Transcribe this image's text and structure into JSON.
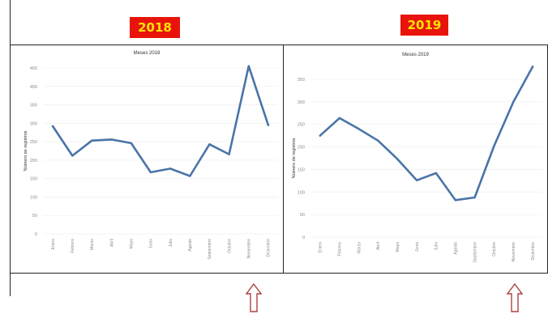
{
  "badges": {
    "left": "2018",
    "right": "2019"
  },
  "colors": {
    "badge_bg": "#e8140c",
    "badge_text": "#ffe400",
    "line": "#4a74a8",
    "grid": "#f0f0f0",
    "arrow": "#b04040"
  },
  "chart_data": [
    {
      "type": "line",
      "title": "Meses 2018",
      "ylabel": "Número de registros",
      "xlabel": "",
      "categories": [
        "Enero",
        "Febrero",
        "Marzo",
        "Abril",
        "Mayo",
        "Junio",
        "Julio",
        "Agosto",
        "Septiembre",
        "Octubre",
        "Noviembre",
        "Diciembre"
      ],
      "series": [
        {
          "values": [
            292,
            212,
            253,
            256,
            246,
            167,
            177,
            157,
            243,
            216,
            455,
            295
          ]
        }
      ],
      "ylim": [
        0,
        450
      ],
      "yticks": [
        0,
        50,
        100,
        150,
        200,
        250,
        300,
        350,
        400,
        450
      ],
      "grid": true
    },
    {
      "type": "line",
      "title": "Meses 2019",
      "ylabel": "Número de registros",
      "xlabel": "",
      "categories": [
        "Enero",
        "Febrero",
        "Marzo",
        "Abril",
        "Mayo",
        "Junio",
        "Julio",
        "Agosto",
        "Septiembre",
        "Octubre",
        "Noviembre",
        "Diciembre"
      ],
      "series": [
        {
          "values": [
            225,
            264,
            240,
            214,
            173,
            126,
            142,
            82,
            88,
            202,
            300,
            378
          ]
        }
      ],
      "ylim": [
        0,
        350
      ],
      "yticks": [
        0,
        50,
        100,
        150,
        200,
        250,
        300,
        350
      ],
      "grid": true
    }
  ]
}
